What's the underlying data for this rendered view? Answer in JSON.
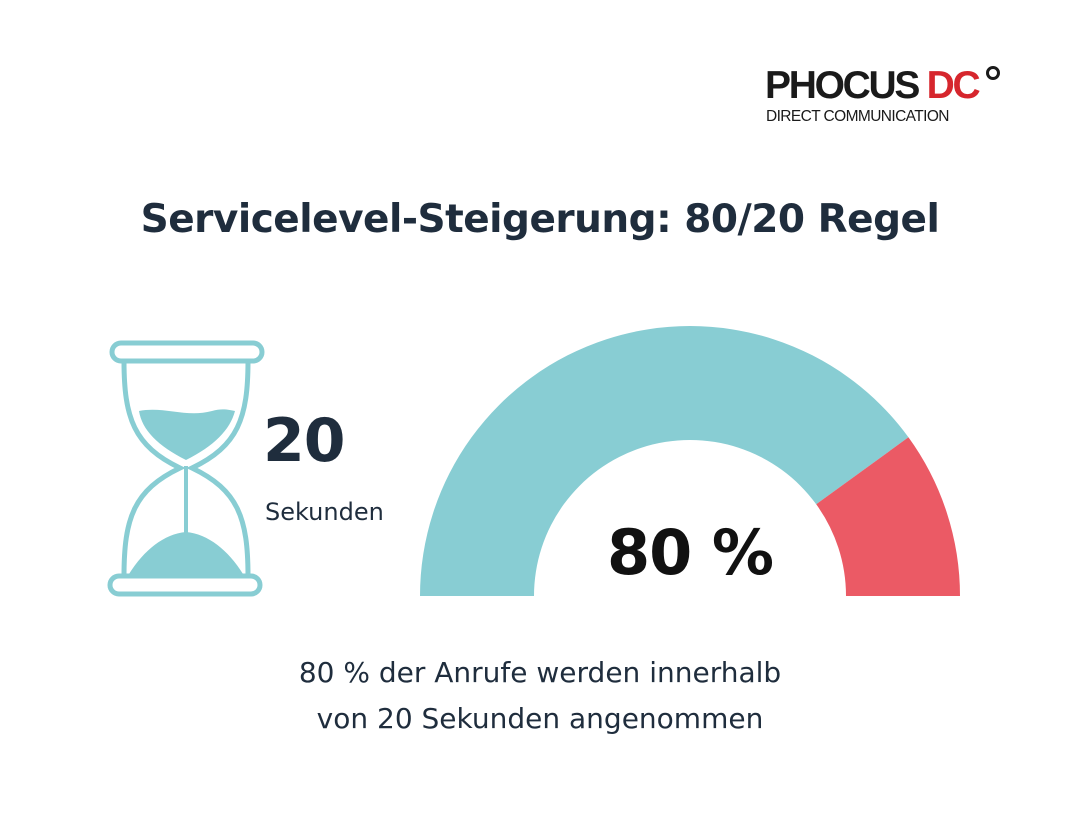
{
  "logo": {
    "word1": "PHOCUS",
    "word2": "DC",
    "subtitle": "DIRECT COMMUNICATION",
    "colors": {
      "dark": "#1a1a1a",
      "red": "#d6262d"
    }
  },
  "title": "Servicelevel-Steigerung: 80/20 Regel",
  "hourglass": {
    "icon": "hourglass-icon",
    "value": "20",
    "unit": "Sekunden"
  },
  "chart_data": {
    "type": "pie",
    "shape": "half-donut gauge",
    "slices": [
      {
        "value": 80,
        "color": "#88cdd3"
      },
      {
        "value": 20,
        "color": "#eb5a65"
      }
    ],
    "center_label": "80 %"
  },
  "caption": {
    "line1": "80 % der Anrufe werden innerhalb",
    "line2": "von 20 Sekunden angenommen"
  },
  "colors": {
    "text": "#1f2d3d",
    "teal": "#88cdd3",
    "red": "#eb5a65"
  }
}
